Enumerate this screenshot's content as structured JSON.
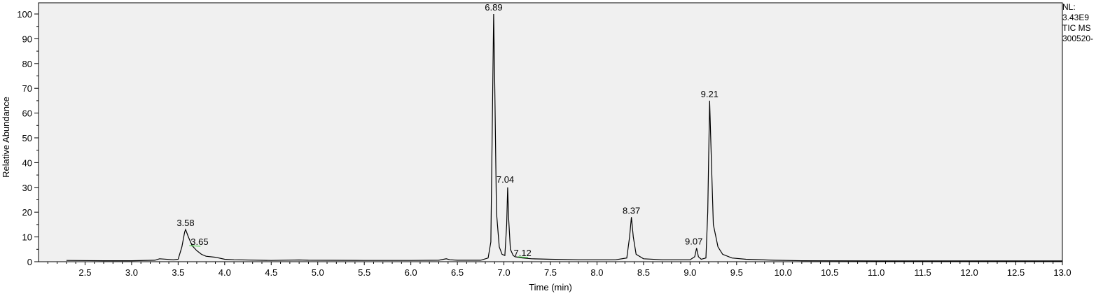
{
  "chart_data": {
    "type": "line",
    "xlabel": "Time (min)",
    "ylabel": "Relative Abundance",
    "xlim": [
      2.0,
      13.0
    ],
    "ylim": [
      0,
      100
    ],
    "x_ticks": [
      2.5,
      3.0,
      3.5,
      4.0,
      4.5,
      5.0,
      5.5,
      6.0,
      6.5,
      7.0,
      7.5,
      8.0,
      8.5,
      9.0,
      9.5,
      10.0,
      10.5,
      11.0,
      11.5,
      12.0,
      12.5,
      13.0
    ],
    "x_tick_labels": [
      "2.5",
      "3.0",
      "3.5",
      "4.0",
      "4.5",
      "5.0",
      "5.5",
      "6.0",
      "6.5",
      "7.0",
      "7.5",
      "8.0",
      "8.5",
      "9.0",
      "9.5",
      "10.0",
      "10.5",
      "11.0",
      "11.5",
      "12.0",
      "12.5",
      "13.0"
    ],
    "y_ticks": [
      0,
      10,
      20,
      30,
      40,
      50,
      60,
      70,
      80,
      90,
      100
    ],
    "y_tick_labels": [
      "0",
      "10",
      "20",
      "30",
      "40",
      "50",
      "60",
      "70",
      "80",
      "90",
      "100"
    ],
    "series": [
      {
        "values": [
          [
            2.3,
            0.5
          ],
          [
            2.7,
            0.4
          ],
          [
            3.0,
            0.4
          ],
          [
            3.25,
            0.6
          ],
          [
            3.3,
            1.2
          ],
          [
            3.45,
            0.8
          ],
          [
            3.5,
            1.0
          ],
          [
            3.54,
            6.0
          ],
          [
            3.57,
            12.0
          ],
          [
            3.58,
            13.0
          ],
          [
            3.61,
            10.0
          ],
          [
            3.65,
            6.5
          ],
          [
            3.7,
            4.5
          ],
          [
            3.75,
            3.0
          ],
          [
            3.8,
            2.2
          ],
          [
            3.9,
            1.8
          ],
          [
            4.0,
            1.0
          ],
          [
            4.1,
            0.8
          ],
          [
            4.5,
            0.5
          ],
          [
            4.8,
            0.7
          ],
          [
            4.9,
            0.6
          ],
          [
            5.5,
            0.5
          ],
          [
            6.0,
            0.5
          ],
          [
            6.3,
            0.6
          ],
          [
            6.38,
            1.2
          ],
          [
            6.42,
            0.8
          ],
          [
            6.5,
            0.6
          ],
          [
            6.75,
            0.6
          ],
          [
            6.83,
            1.5
          ],
          [
            6.86,
            8.0
          ],
          [
            6.88,
            70.0
          ],
          [
            6.89,
            100.0
          ],
          [
            6.9,
            75.0
          ],
          [
            6.92,
            20.0
          ],
          [
            6.95,
            6.0
          ],
          [
            6.98,
            3.0
          ],
          [
            7.01,
            2.5
          ],
          [
            7.03,
            15.0
          ],
          [
            7.04,
            30.0
          ],
          [
            7.05,
            18.0
          ],
          [
            7.07,
            5.0
          ],
          [
            7.1,
            2.5
          ],
          [
            7.12,
            2.0
          ],
          [
            7.2,
            1.5
          ],
          [
            7.3,
            1.2
          ],
          [
            7.5,
            1.0
          ],
          [
            7.8,
            0.8
          ],
          [
            8.2,
            0.8
          ],
          [
            8.32,
            1.5
          ],
          [
            8.35,
            10.0
          ],
          [
            8.37,
            18.0
          ],
          [
            8.39,
            10.0
          ],
          [
            8.42,
            3.0
          ],
          [
            8.5,
            1.2
          ],
          [
            8.7,
            0.8
          ],
          [
            9.0,
            0.8
          ],
          [
            9.05,
            2.0
          ],
          [
            9.07,
            5.5
          ],
          [
            9.09,
            2.0
          ],
          [
            9.12,
            1.0
          ],
          [
            9.17,
            1.5
          ],
          [
            9.19,
            20.0
          ],
          [
            9.21,
            65.0
          ],
          [
            9.23,
            40.0
          ],
          [
            9.25,
            15.0
          ],
          [
            9.3,
            6.0
          ],
          [
            9.35,
            3.0
          ],
          [
            9.45,
            1.5
          ],
          [
            9.6,
            1.0
          ],
          [
            9.9,
            0.6
          ],
          [
            10.2,
            0.4
          ],
          [
            11.0,
            0.3
          ],
          [
            12.0,
            0.3
          ],
          [
            13.0,
            0.3
          ]
        ]
      }
    ],
    "peak_labels": [
      {
        "x": 3.58,
        "y": 13,
        "text": "3.58"
      },
      {
        "x": 3.65,
        "y": 6.5,
        "text": "3.65"
      },
      {
        "x": 6.89,
        "y": 100,
        "text": "6.89"
      },
      {
        "x": 7.04,
        "y": 30,
        "text": "7.04"
      },
      {
        "x": 7.12,
        "y": 2,
        "text": "7.12"
      },
      {
        "x": 8.37,
        "y": 18,
        "text": "8.37"
      },
      {
        "x": 9.07,
        "y": 5.5,
        "text": "9.07"
      },
      {
        "x": 9.21,
        "y": 65,
        "text": "9.21"
      }
    ],
    "integration_marks": [
      {
        "x1": 3.62,
        "x2": 3.74,
        "y": 6.5
      },
      {
        "x1": 7.15,
        "x2": 7.26,
        "y": 2.0
      }
    ],
    "colors": {
      "trace": "#000000",
      "plot_background": "#f0f0f0",
      "integration_mark": "#33cc33"
    },
    "grid": false,
    "legend": "none"
  },
  "info": {
    "nl_label": "NL:",
    "nl_value": "3.43E9",
    "scan_type": "TIC  MS",
    "file_name": "300520-"
  }
}
